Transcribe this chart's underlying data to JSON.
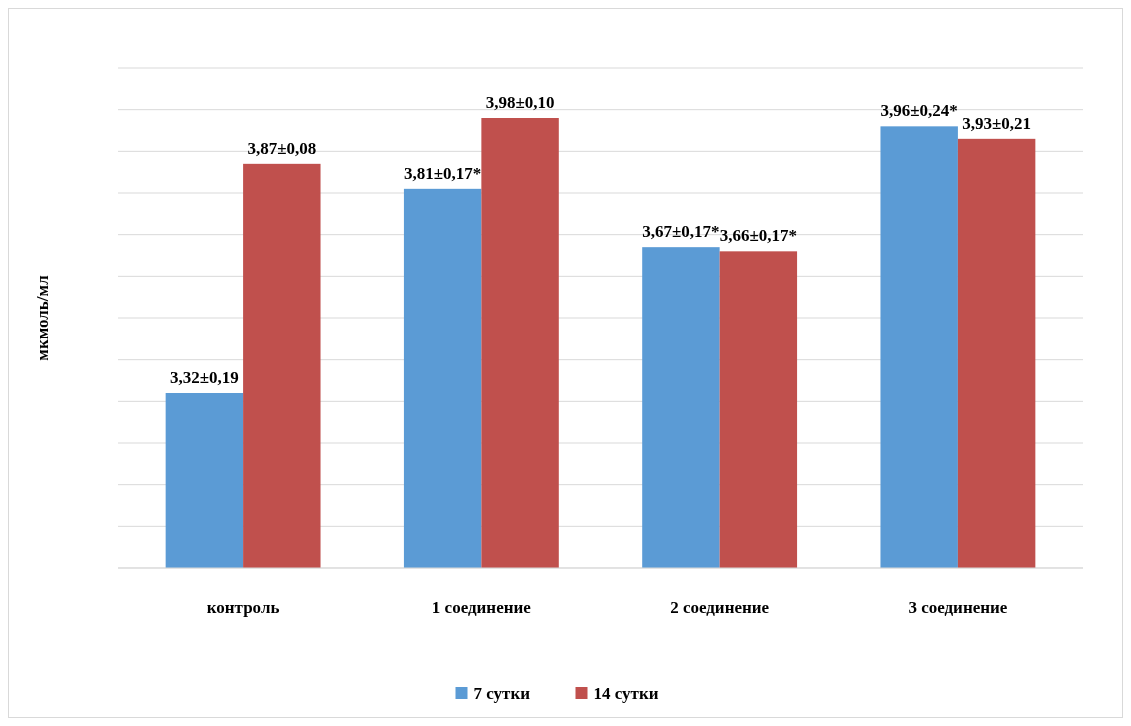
{
  "chart_data": {
    "type": "bar",
    "ylabel": "мкмоль/мл",
    "categories": [
      "контроль",
      "1 соединение",
      "2 соединение",
      "3 соединение"
    ],
    "series": [
      {
        "name": "7 сутки",
        "color": "#5b9bd5",
        "values": [
          3.32,
          3.81,
          3.67,
          3.96
        ],
        "value_labels": [
          "3,32±0,19",
          "3,81±0,17*",
          "3,67±0,17*",
          "3,96±0,24*"
        ]
      },
      {
        "name": "14 сутки",
        "color": "#c0504d",
        "values": [
          3.87,
          3.98,
          3.66,
          3.93
        ],
        "value_labels": [
          "3,87±0,08",
          "3,98±0,10",
          "3,66±0,17*",
          "3,93±0,21"
        ]
      }
    ],
    "ylim": [
      2.9,
      4.1
    ],
    "yticks": [
      {
        "value": 2.9,
        "label": null
      },
      {
        "value": 3.0,
        "label": null
      },
      {
        "value": 3.1,
        "label": null
      },
      {
        "value": 3.2,
        "label": null
      },
      {
        "value": 3.3,
        "label": null
      },
      {
        "value": 3.4,
        "label": null
      },
      {
        "value": 3.5,
        "label": null
      },
      {
        "value": 3.6,
        "label": null
      },
      {
        "value": 3.7,
        "label": null
      },
      {
        "value": 3.8,
        "label": null
      },
      {
        "value": 3.9,
        "label": null
      },
      {
        "value": 4.0,
        "label": null
      },
      {
        "value": 4.1,
        "label": null
      }
    ],
    "tick_labels": "x",
    "grid": "y",
    "legend": "bottom"
  }
}
